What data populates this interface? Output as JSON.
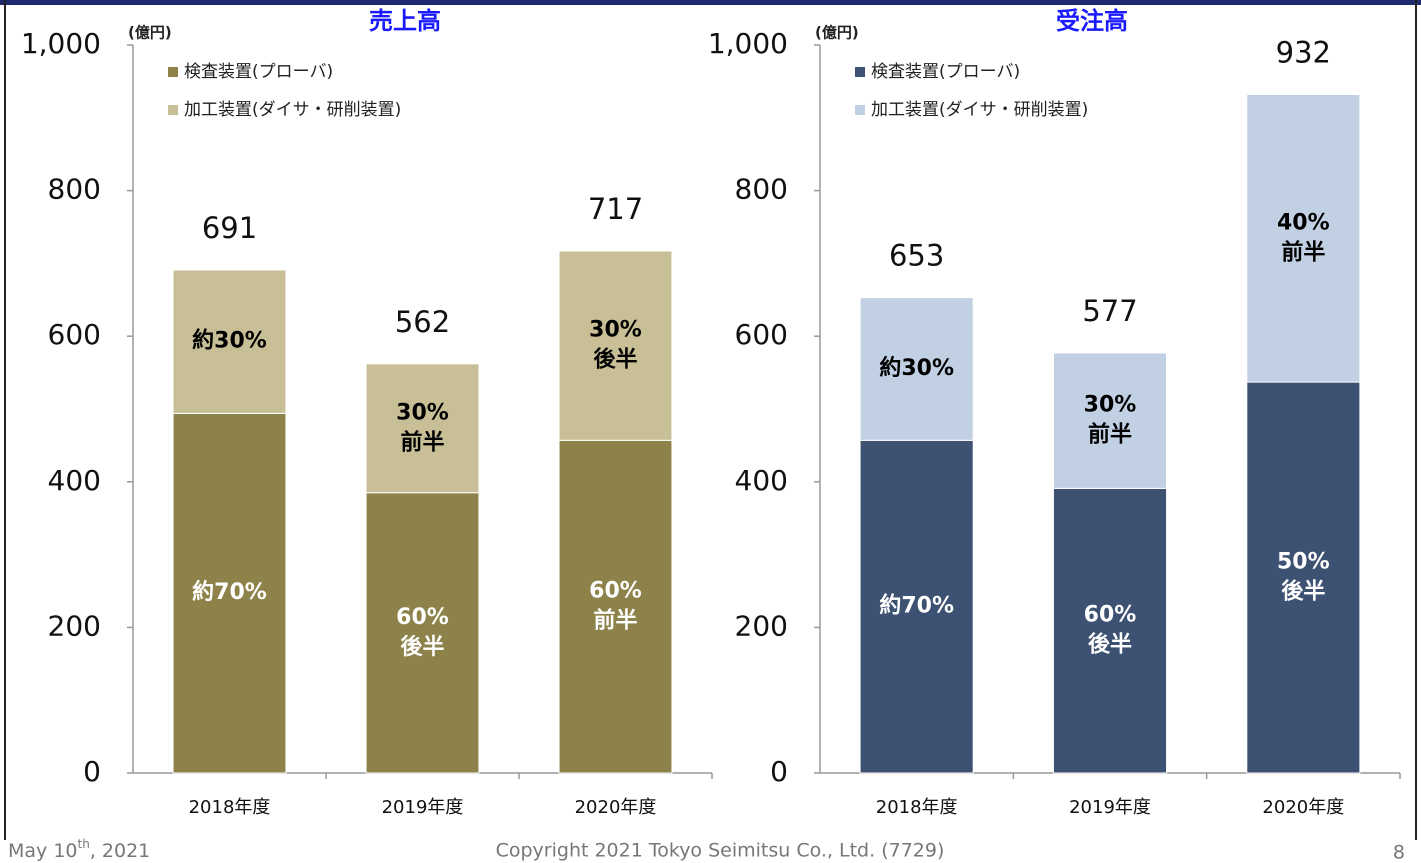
{
  "chart_data": [
    {
      "type": "bar",
      "stacked": true,
      "title": "売上高",
      "y_unit": "(億円)",
      "categories": [
        "2018年度",
        "2019年度",
        "2020年度"
      ],
      "series": [
        {
          "name": "検査装置(プローバ)",
          "color": "#8d8249",
          "text_color": "#ffffff",
          "values": [
            494,
            385,
            457
          ],
          "labels": [
            [
              "約70%"
            ],
            [
              "60%",
              "後半"
            ],
            [
              "60%",
              "前半"
            ]
          ]
        },
        {
          "name": "加工装置(ダイサ・研削装置)",
          "color": "#c8bf97",
          "text_color": "#000000",
          "values": [
            197,
            177,
            260
          ],
          "labels": [
            [
              "約30%"
            ],
            [
              "30%",
              "前半"
            ],
            [
              "30%",
              "後半"
            ]
          ]
        }
      ],
      "totals": [
        691,
        562,
        717
      ],
      "ylim": [
        0,
        1000
      ],
      "yticks": [
        0,
        200,
        400,
        600,
        800,
        {
          "value": 1000,
          "label": "1,000"
        }
      ]
    },
    {
      "type": "bar",
      "stacked": true,
      "title": "受注高",
      "y_unit": "(億円)",
      "categories": [
        "2018年度",
        "2019年度",
        "2020年度"
      ],
      "series": [
        {
          "name": "検査装置(プローバ)",
          "color": "#3d5172",
          "text_color": "#ffffff",
          "values": [
            457,
            391,
            537
          ],
          "labels": [
            [
              "約70%"
            ],
            [
              "60%",
              "後半"
            ],
            [
              "50%",
              "後半"
            ]
          ]
        },
        {
          "name": "加工装置(ダイサ・研削装置)",
          "color": "#c1d0e3",
          "text_color": "#000000",
          "values": [
            196,
            186,
            395
          ],
          "labels": [
            [
              "約30%"
            ],
            [
              "30%",
              "前半"
            ],
            [
              "40%",
              "前半"
            ]
          ]
        }
      ],
      "totals": [
        653,
        577,
        932
      ],
      "ylim": [
        0,
        1000
      ],
      "yticks": [
        0,
        200,
        400,
        600,
        800,
        {
          "value": 1000,
          "label": "1,000"
        }
      ]
    }
  ],
  "footer": {
    "date": "May 10",
    "date_suffix": "th",
    "date_rest": ", 2021",
    "copyright": "Copyright  2021 Tokyo Seimitsu Co., Ltd. (7729)",
    "page": "8"
  }
}
